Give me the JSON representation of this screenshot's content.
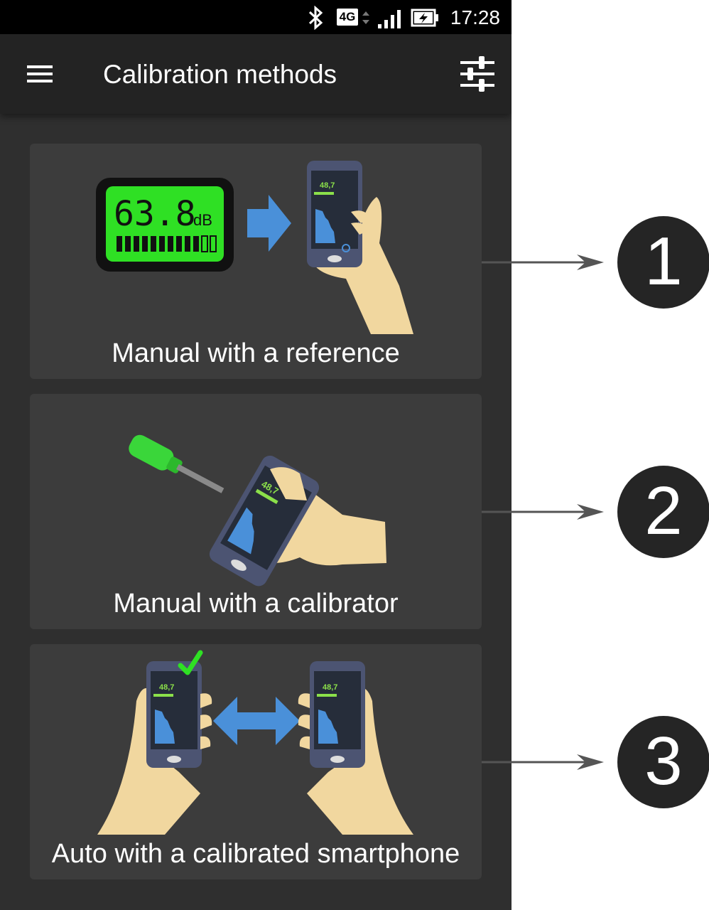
{
  "status_bar": {
    "time": "17:28",
    "network": "4G"
  },
  "app_bar": {
    "title": "Calibration methods"
  },
  "cards": [
    {
      "label": "Manual with a reference",
      "meter_reading": "63.8",
      "meter_unit": "dB",
      "number": "1"
    },
    {
      "label": "Manual with a calibrator",
      "number": "2"
    },
    {
      "label": "Auto with a calibrated smartphone",
      "number": "3"
    }
  ],
  "phone_screen": {
    "reading": "48,7"
  },
  "colors": {
    "background": "#2f2f2f",
    "card": "#3c3c3c",
    "appbar": "#232323",
    "accent_blue": "#4a90d9",
    "meter_green": "#2fe024"
  }
}
